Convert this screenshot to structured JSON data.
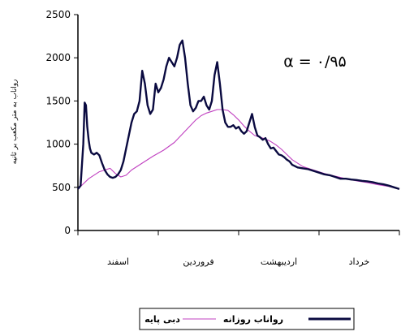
{
  "chart_data": {
    "type": "line",
    "ylabel": "رواناب به متر مکعب بر ثانیه",
    "ylim": [
      0,
      2500
    ],
    "yticks": [
      0,
      500,
      1000,
      1500,
      2000,
      2500
    ],
    "ytick_labels": [
      "0",
      "500",
      "1000",
      "1500",
      "2000",
      "2500"
    ],
    "xlim": [
      0,
      120
    ],
    "month_labels": [
      {
        "label": "اسفند",
        "x": 15
      },
      {
        "label": "فروردین",
        "x": 45
      },
      {
        "label": "اردیبهشت",
        "x": 75
      },
      {
        "label": "خرداد",
        "x": 105
      }
    ],
    "annotation": "α = ۰/۹۵",
    "legend_position": "bottom",
    "grid": false,
    "series": [
      {
        "name": "رواناب روزانه",
        "color": "#0a0a40",
        "x": [
          0,
          1,
          2,
          2.5,
          3,
          3.5,
          4,
          4.5,
          5,
          6,
          7,
          8,
          9,
          10,
          11,
          12,
          13,
          14,
          15,
          16,
          17,
          18,
          19,
          20,
          21,
          22,
          23,
          24,
          25,
          26,
          27,
          28,
          29,
          30,
          31,
          32,
          33,
          34,
          35,
          36,
          37,
          38,
          39,
          40,
          41,
          42,
          43,
          44,
          45,
          46,
          47,
          48,
          49,
          50,
          51,
          52,
          53,
          54,
          55,
          56,
          57,
          58,
          59,
          60,
          61,
          62,
          63,
          64,
          65,
          66,
          67,
          68,
          69,
          70,
          71,
          72,
          73,
          74,
          75,
          76,
          77,
          78,
          79,
          80,
          82,
          84,
          86,
          88,
          90,
          92,
          94,
          96,
          98,
          100,
          102,
          104,
          106,
          108,
          110,
          112,
          114,
          116,
          118,
          120
        ],
        "y": [
          480,
          520,
          1000,
          1480,
          1450,
          1200,
          1050,
          950,
          900,
          880,
          900,
          870,
          780,
          700,
          650,
          620,
          610,
          620,
          650,
          700,
          800,
          950,
          1100,
          1250,
          1350,
          1380,
          1500,
          1850,
          1700,
          1450,
          1350,
          1400,
          1700,
          1600,
          1650,
          1750,
          1900,
          2000,
          1950,
          1900,
          2000,
          2150,
          2200,
          2000,
          1700,
          1450,
          1380,
          1420,
          1500,
          1500,
          1550,
          1450,
          1400,
          1500,
          1800,
          1950,
          1700,
          1400,
          1250,
          1200,
          1200,
          1220,
          1180,
          1200,
          1150,
          1120,
          1150,
          1250,
          1350,
          1200,
          1100,
          1080,
          1050,
          1070,
          1000,
          950,
          960,
          920,
          880,
          870,
          850,
          820,
          800,
          760,
          730,
          720,
          710,
          690,
          670,
          650,
          640,
          620,
          600,
          600,
          590,
          585,
          575,
          570,
          560,
          545,
          535,
          520,
          500,
          480
        ]
      },
      {
        "name": "دبی پایه",
        "color": "#c040c0",
        "x": [
          0,
          4,
          8,
          12,
          14,
          16,
          18,
          20,
          24,
          28,
          32,
          36,
          40,
          44,
          46,
          48,
          50,
          52,
          54,
          56,
          58,
          60,
          62,
          64,
          66,
          68,
          70,
          72,
          74,
          76,
          78,
          80,
          84,
          88,
          92,
          96,
          100,
          104,
          108,
          112,
          116,
          120
        ],
        "y": [
          480,
          600,
          680,
          720,
          660,
          620,
          640,
          700,
          780,
          860,
          930,
          1020,
          1150,
          1280,
          1330,
          1360,
          1380,
          1400,
          1400,
          1390,
          1340,
          1280,
          1210,
          1150,
          1100,
          1080,
          1060,
          1030,
          990,
          940,
          880,
          820,
          740,
          700,
          660,
          630,
          600,
          575,
          555,
          530,
          510,
          480
        ]
      }
    ]
  }
}
